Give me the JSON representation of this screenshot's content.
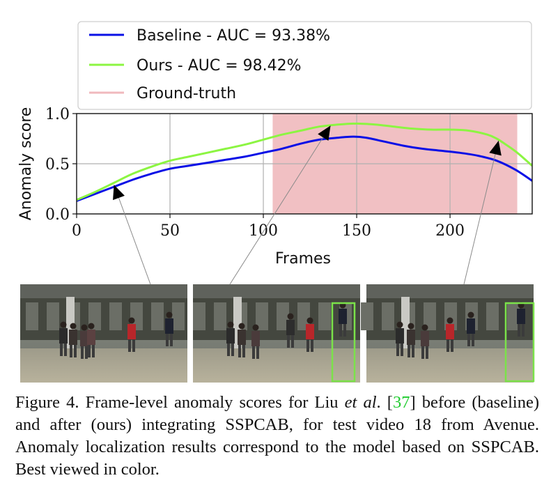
{
  "chart_data": {
    "type": "line",
    "xlabel": "Frames",
    "ylabel": "Anomaly score",
    "xlim": [
      0,
      244
    ],
    "ylim": [
      0,
      1.0
    ],
    "x_ticks": [
      "0",
      "50",
      "100",
      "150",
      "200"
    ],
    "y_ticks": [
      "0.0",
      "0.5",
      "1.0"
    ],
    "grid": true,
    "legend_position": "top",
    "ground_truth_range": [
      105,
      236
    ],
    "series": [
      {
        "name": "Baseline",
        "auc_prefix": "Baseline - AUC = ",
        "auc_value": "93.38%",
        "color": "#0a10e6",
        "x": [
          0,
          10,
          20,
          30,
          40,
          50,
          60,
          70,
          80,
          90,
          100,
          110,
          120,
          130,
          140,
          148,
          155,
          165,
          175,
          185,
          195,
          205,
          215,
          225,
          235,
          244
        ],
        "y": [
          0.13,
          0.2,
          0.27,
          0.34,
          0.4,
          0.45,
          0.48,
          0.51,
          0.54,
          0.57,
          0.61,
          0.65,
          0.7,
          0.74,
          0.76,
          0.77,
          0.76,
          0.72,
          0.68,
          0.65,
          0.63,
          0.61,
          0.58,
          0.53,
          0.44,
          0.33
        ]
      },
      {
        "name": "Ours",
        "auc_prefix": "Ours - AUC = ",
        "auc_value": "98.42%",
        "color": "#8cf542",
        "x": [
          0,
          10,
          20,
          30,
          40,
          50,
          60,
          70,
          80,
          90,
          100,
          110,
          120,
          130,
          140,
          150,
          160,
          170,
          180,
          190,
          200,
          210,
          220,
          225,
          230,
          236,
          244
        ],
        "y": [
          0.14,
          0.22,
          0.31,
          0.4,
          0.47,
          0.53,
          0.57,
          0.61,
          0.65,
          0.69,
          0.74,
          0.79,
          0.83,
          0.87,
          0.89,
          0.9,
          0.89,
          0.87,
          0.85,
          0.84,
          0.84,
          0.83,
          0.79,
          0.75,
          0.69,
          0.61,
          0.48
        ]
      },
      {
        "name": "Ground-truth",
        "color": "#f0b9bd"
      }
    ],
    "annotations": [
      {
        "frame": 20,
        "score": 0.29,
        "target": "frame-left"
      },
      {
        "frame": 136,
        "score": 0.88,
        "target": "frame-middle"
      },
      {
        "frame": 226,
        "score": 0.73,
        "target": "frame-right"
      }
    ]
  },
  "frames": [
    {
      "id": "left",
      "has_box": false
    },
    {
      "id": "middle",
      "has_box": true
    },
    {
      "id": "right",
      "has_box": true
    }
  ],
  "caption": {
    "lead": "Figure 4.  Frame-level anomaly scores for Liu ",
    "etal": "et al",
    "dot": ". [",
    "ref": "37",
    "rest": "] before (baseline) and after (ours) integrating SSPCAB, for test video 18 from Avenue.  Anomaly localization results correspond to the model based on SSPCAB. Best viewed in color."
  },
  "colors": {
    "box": "#7be24a",
    "ref_link": "#1ecb2e"
  }
}
